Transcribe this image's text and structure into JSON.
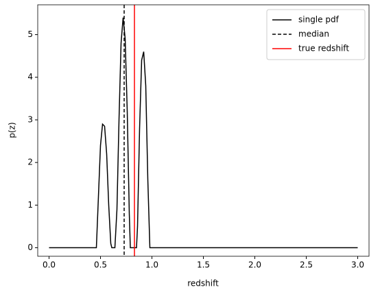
{
  "chart_data": {
    "type": "line",
    "xlabel": "redshift",
    "ylabel": "p(z)",
    "series": [
      {
        "name": "single pdf",
        "color": "#000000",
        "dash": "solid",
        "x": [
          0,
          0.46,
          0.48,
          0.5,
          0.52,
          0.54,
          0.56,
          0.58,
          0.6,
          0.61,
          0.64,
          0.66,
          0.68,
          0.7,
          0.72,
          0.74,
          0.76,
          0.78,
          0.79,
          0.85,
          0.86,
          0.88,
          0.9,
          0.92,
          0.94,
          0.96,
          0.98,
          3.0
        ],
        "values": [
          0,
          0,
          1.2,
          2.4,
          2.9,
          2.85,
          2.2,
          1.0,
          0.1,
          0,
          0,
          0.9,
          3.0,
          4.8,
          5.4,
          4.9,
          3.2,
          0.8,
          0,
          0,
          0.5,
          2.8,
          4.4,
          4.6,
          3.8,
          1.6,
          0,
          0
        ]
      },
      {
        "name": "median",
        "color": "#000000",
        "dash": "dashed",
        "vline": 0.73
      },
      {
        "name": "true redshift",
        "color": "#ff0000",
        "dash": "solid",
        "vline": 0.83
      }
    ],
    "xlim": [
      -0.11,
      3.11
    ],
    "ylim": [
      -0.2,
      5.7
    ],
    "xticks": [
      {
        "value": 0,
        "label": "0.0"
      },
      {
        "value": 0.5,
        "label": "0.5"
      },
      {
        "value": 1,
        "label": "1.0"
      },
      {
        "value": 1.5,
        "label": "1.5"
      },
      {
        "value": 2,
        "label": "2.0"
      },
      {
        "value": 2.5,
        "label": "2.5"
      },
      {
        "value": 3,
        "label": "3.0"
      }
    ],
    "yticks": [
      0,
      1,
      2,
      3,
      4,
      5
    ],
    "legend": "upper right",
    "grid": false
  }
}
